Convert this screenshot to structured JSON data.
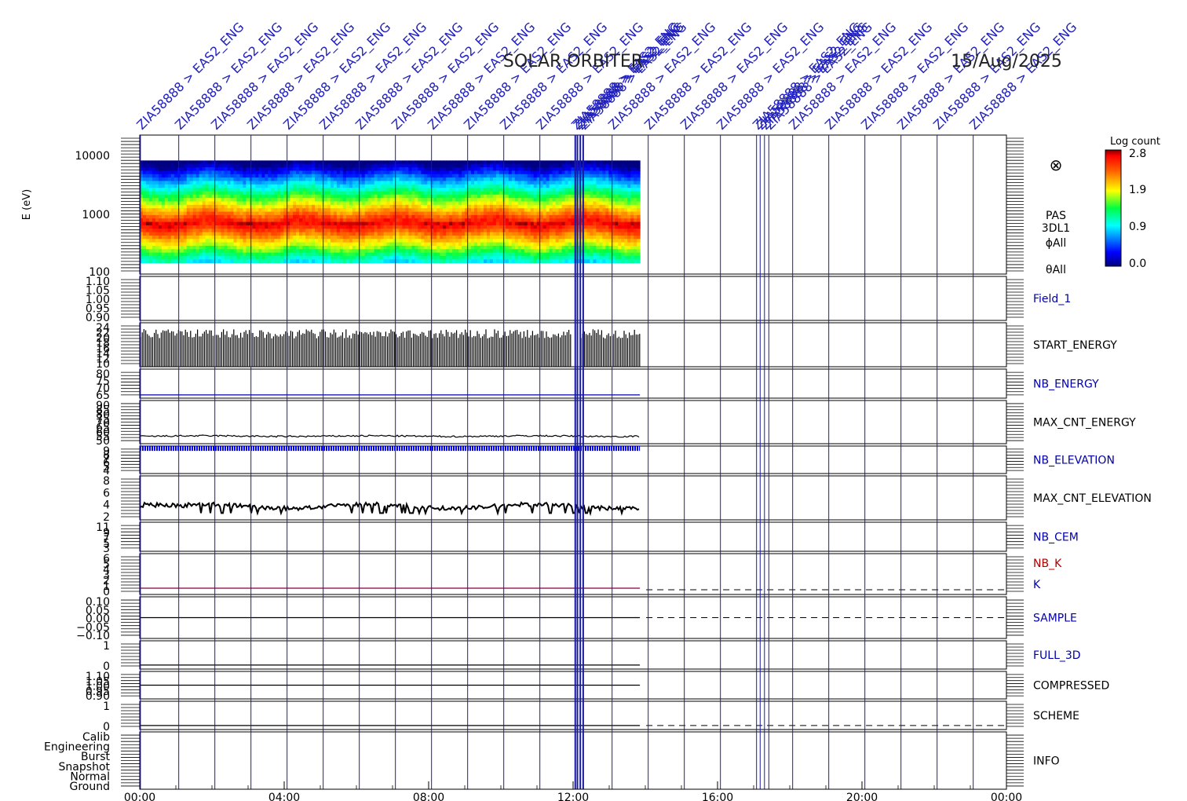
{
  "header": {
    "mission": "SOLAR ORBITER",
    "date": "15/Aug/2025"
  },
  "colorbar": {
    "title": "Log count",
    "ticks": [
      "2.8",
      "1.9",
      "0.9",
      "0.0"
    ]
  },
  "spectrogram_labels": [
    "PAS",
    "3DL1",
    "ϕAll",
    "θAll"
  ],
  "marker_glyph": "⊗",
  "event_label": "ZIA58888 > EAS2_ENG",
  "chart_data": {
    "type": "multi-panel time series",
    "x": {
      "range_hours": [
        0,
        24
      ],
      "tick_labels": [
        "00:00",
        "04:00",
        "08:00",
        "12:00",
        "16:00",
        "20:00",
        "00:00"
      ],
      "data_end_hour": 13.85
    },
    "event_markers_hours": [
      0.02,
      1.08,
      2.08,
      3.08,
      4.08,
      5.08,
      6.08,
      7.08,
      8.08,
      9.08,
      10.08,
      11.08,
      12.06,
      12.12,
      12.2,
      12.28,
      13.08,
      14.08,
      15.08,
      16.08,
      17.08,
      17.18,
      17.3,
      17.42,
      18.08,
      19.08,
      20.08,
      21.08,
      22.08,
      23.08
    ],
    "panels": [
      {
        "label": "",
        "type": "heatmap",
        "ylabel": "E (eV)",
        "yticks": [
          "10000",
          "1000",
          "100"
        ],
        "ylog": true,
        "ylim": [
          100,
          15000
        ],
        "energy_band_eV": [
          150,
          6000
        ],
        "peak_energy_eV": 650,
        "zlim": [
          0.0,
          2.8
        ]
      },
      {
        "label": "Field_1",
        "label_color": "#0000aa",
        "yticks": [
          "1.10",
          "1.05",
          "1.00",
          "0.95",
          "0.90"
        ]
      },
      {
        "label": "START_ENERGY",
        "label_color": "#000000",
        "yticks": [
          "24",
          "22",
          "20",
          "18",
          "16",
          "14",
          "12",
          "10"
        ],
        "ylim": [
          10,
          24
        ],
        "style": "bars",
        "base": 10,
        "typical_max": 22
      },
      {
        "label": "NB_ENERGY",
        "label_color": "#0000aa",
        "yticks": [
          "80",
          "75",
          "70",
          "65"
        ],
        "ylim": [
          62,
          80
        ],
        "constant": 64
      },
      {
        "label": "MAX_CNT_ENERGY",
        "label_color": "#000000",
        "yticks": [
          "90",
          "85",
          "80",
          "75",
          "70",
          "65",
          "60",
          "55",
          "50"
        ],
        "ylim": [
          50,
          90
        ],
        "typical": 57
      },
      {
        "label": "NB_ELEVATION",
        "label_color": "#0000aa",
        "yticks": [
          "9",
          "8",
          "7",
          "6",
          "5",
          "4"
        ],
        "ylim": [
          4,
          9.5
        ],
        "constant": 9
      },
      {
        "label": "MAX_CNT_ELEVATION",
        "label_color": "#000000",
        "yticks": [
          "8",
          "6",
          "4",
          "2"
        ],
        "ylim": [
          2,
          8.5
        ],
        "typical": 4
      },
      {
        "label": "NB_CEM",
        "label_color": "#0000aa",
        "yticks": [
          "11",
          "9",
          "7",
          "5",
          "3"
        ],
        "ylim": [
          2,
          12
        ]
      },
      {
        "label": "NB_K",
        "label_color": "#b00000",
        "second_label": "K",
        "second_color": "#0000aa",
        "yticks": [
          "6",
          "5",
          "4",
          "3",
          "2",
          "1",
          "0"
        ],
        "ylim": [
          0,
          6.5
        ],
        "constant": 1
      },
      {
        "label": "SAMPLE",
        "label_color": "#0000aa",
        "yticks": [
          "0.10",
          "0.05",
          "0.00",
          "−0.05",
          "−0.10"
        ],
        "ylim": [
          -0.1,
          0.1
        ],
        "constant": 0
      },
      {
        "label": "FULL_3D",
        "label_color": "#0000aa",
        "yticks": [
          "1",
          "0"
        ],
        "ylim": [
          -0.2,
          1.2
        ],
        "constant": 0
      },
      {
        "label": "COMPRESSED",
        "label_color": "#000000",
        "yticks": [
          "1.10",
          "1.05",
          "1.00",
          "0.95",
          "0.90"
        ],
        "ylim": [
          0.9,
          1.1
        ],
        "constant": 1.0
      },
      {
        "label": "SCHEME",
        "label_color": "#000000",
        "yticks": [
          "1",
          "0"
        ],
        "ylim": [
          -0.2,
          1.2
        ],
        "constant": 0
      },
      {
        "label": "INFO",
        "label_color": "#000000",
        "yticks": [
          "Calib",
          "Engineering",
          "Burst",
          "Snapshot",
          "Normal",
          "Ground"
        ]
      }
    ]
  }
}
